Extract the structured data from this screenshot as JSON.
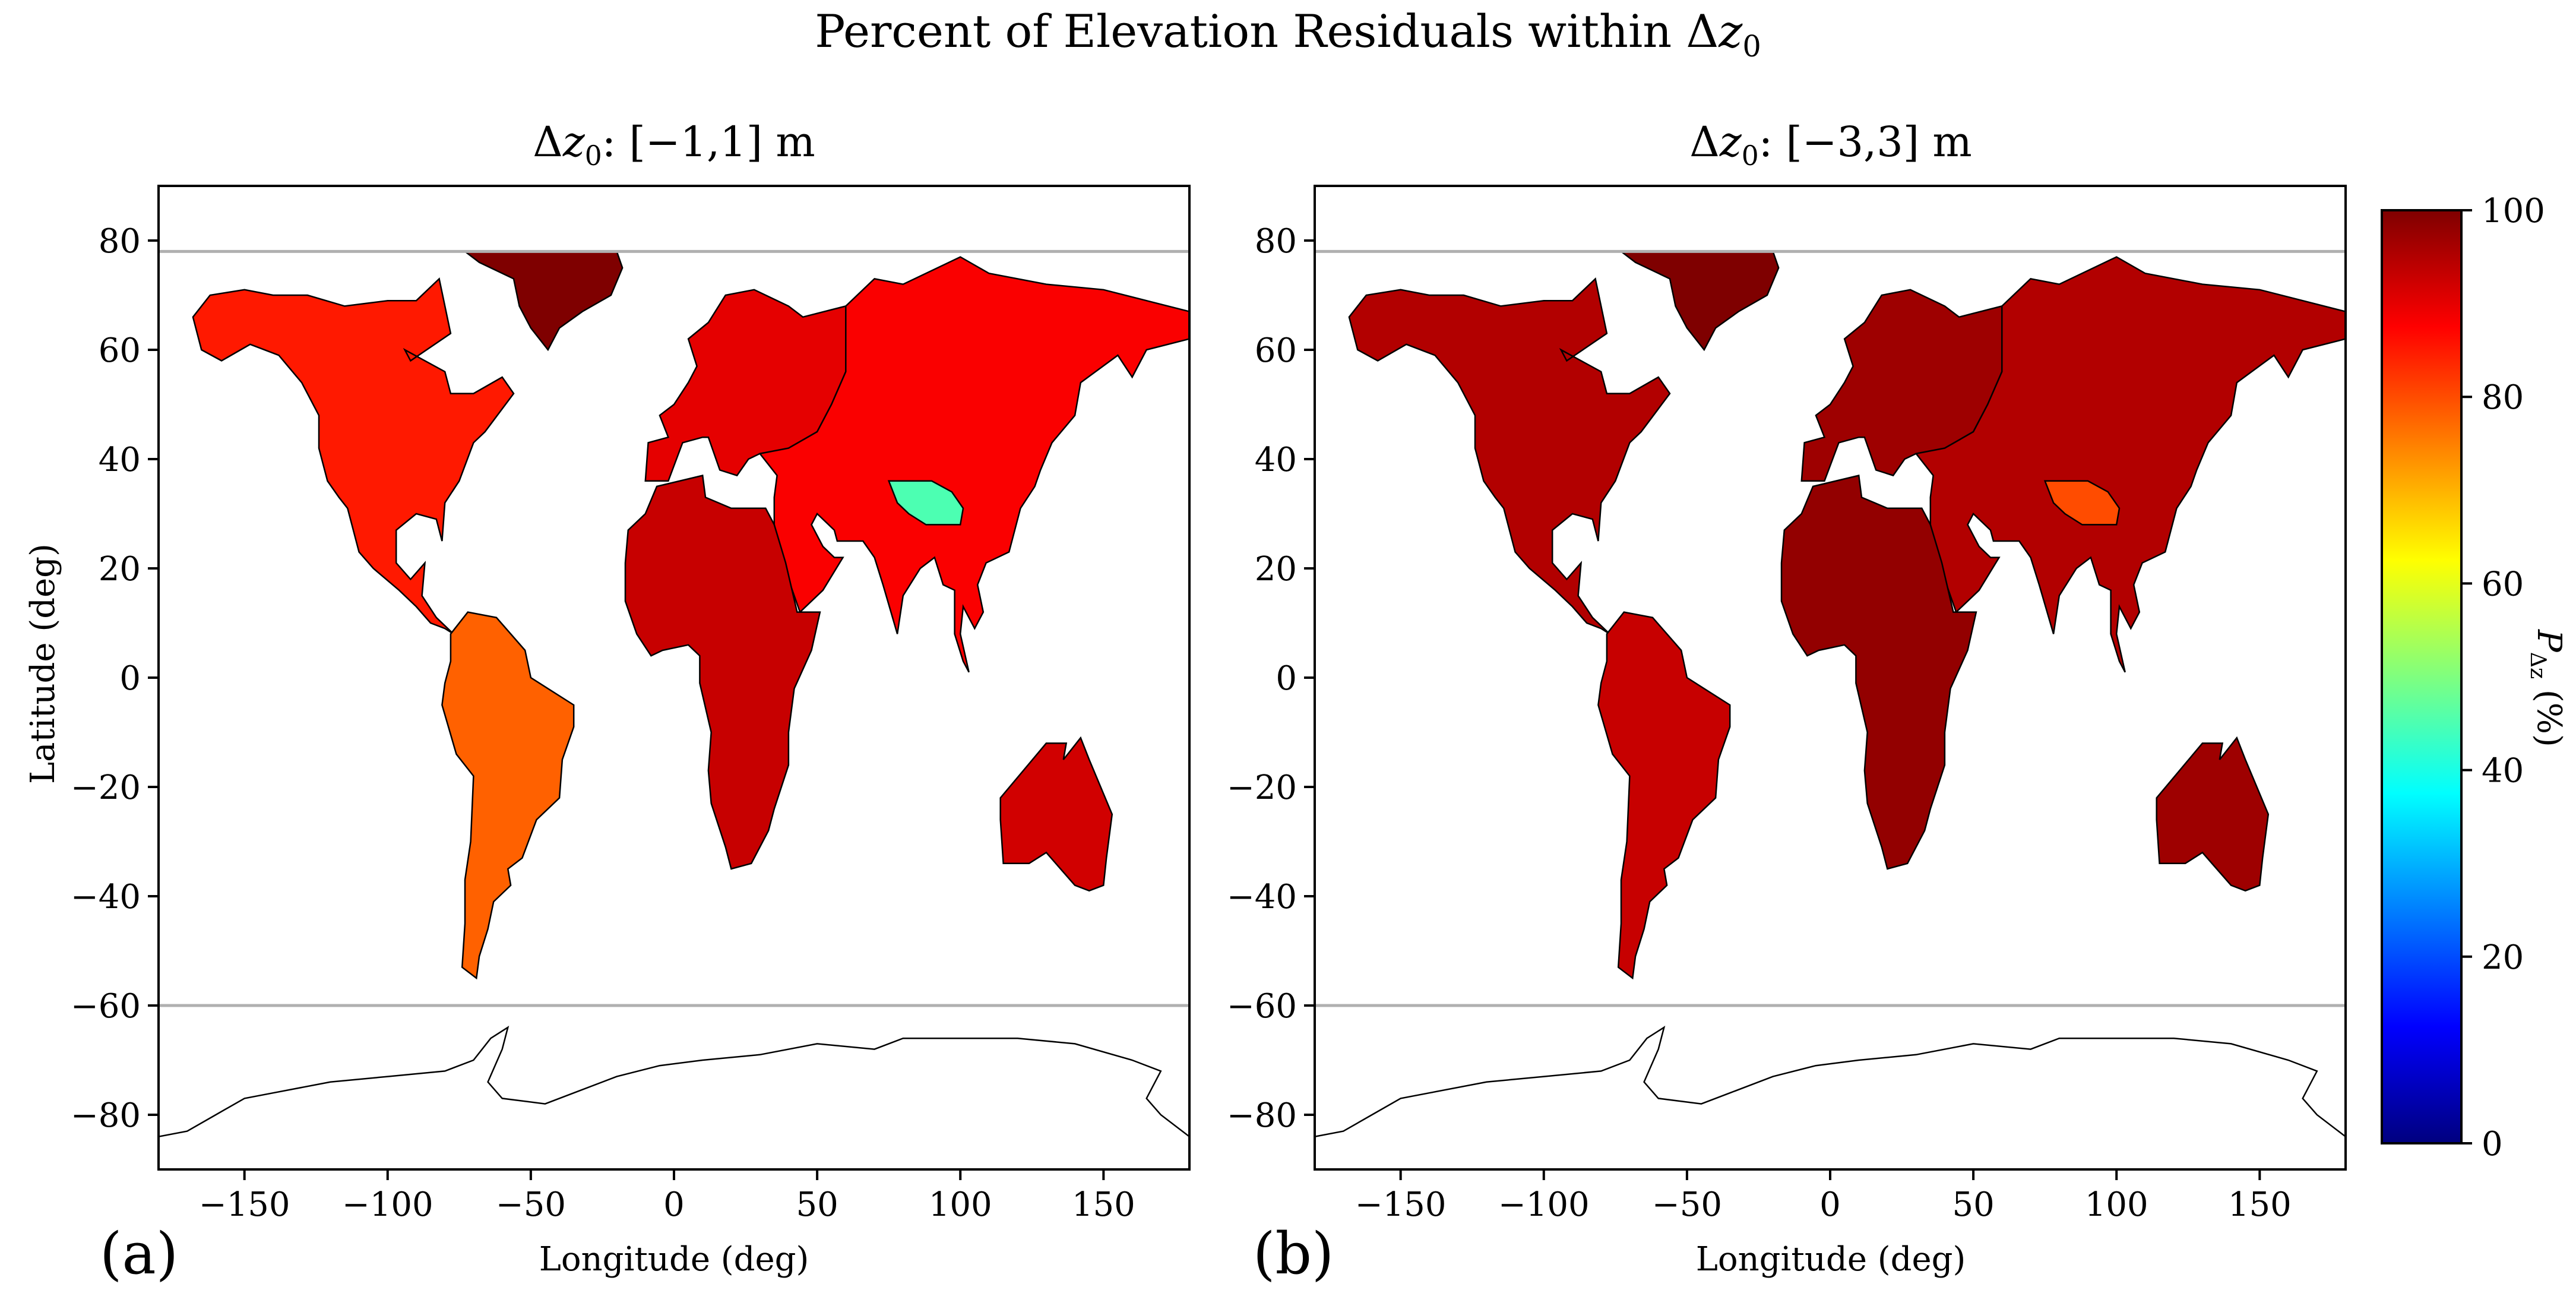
{
  "figure": {
    "title_prefix": "Percent of Elevation Residuals within Δ",
    "title_var": "z",
    "title_sub": "0"
  },
  "chart_data": [
    {
      "type": "heatmap",
      "panel": "(a)",
      "title_prefix": "Δ",
      "title_var": "z",
      "title_sub": "0",
      "title_suffix": ": [−1,1] m",
      "xlabel": "Longitude (deg)",
      "ylabel": "Latitude (deg)",
      "xlim": [
        -180,
        180
      ],
      "ylim": [
        -90,
        90
      ],
      "xticks": [
        -150,
        -100,
        -50,
        0,
        50,
        100,
        150
      ],
      "yticks": [
        80,
        60,
        40,
        20,
        0,
        -20,
        -40,
        -60,
        -80
      ],
      "reference_lines_lat": [
        78,
        -60
      ],
      "regions": [
        {
          "name": "North America",
          "value": 85
        },
        {
          "name": "Greenland",
          "value": 100
        },
        {
          "name": "South America",
          "value": 78
        },
        {
          "name": "Europe",
          "value": 90
        },
        {
          "name": "Asia",
          "value": 88
        },
        {
          "name": "Tibetan Plateau",
          "value": 45
        },
        {
          "name": "Africa",
          "value": 93
        },
        {
          "name": "Australia",
          "value": 92
        },
        {
          "name": "Antarctica",
          "value": null
        }
      ]
    },
    {
      "type": "heatmap",
      "panel": "(b)",
      "title_prefix": "Δ",
      "title_var": "z",
      "title_sub": "0",
      "title_suffix": ": [−3,3] m",
      "xlabel": "Longitude (deg)",
      "ylabel": "",
      "xlim": [
        -180,
        180
      ],
      "ylim": [
        -90,
        90
      ],
      "xticks": [
        -150,
        -100,
        -50,
        0,
        50,
        100,
        150
      ],
      "yticks": [
        80,
        60,
        40,
        20,
        0,
        -20,
        -40,
        -60,
        -80
      ],
      "reference_lines_lat": [
        78,
        -60
      ],
      "regions": [
        {
          "name": "North America",
          "value": 95
        },
        {
          "name": "Greenland",
          "value": 100
        },
        {
          "name": "South America",
          "value": 93
        },
        {
          "name": "Europe",
          "value": 97
        },
        {
          "name": "Asia",
          "value": 95
        },
        {
          "name": "Tibetan Plateau",
          "value": 80
        },
        {
          "name": "Africa",
          "value": 98
        },
        {
          "name": "Australia",
          "value": 97
        },
        {
          "name": "Antarctica",
          "value": null
        }
      ]
    }
  ],
  "colorbar": {
    "label_var": "P",
    "label_sub": "Δz",
    "label_suffix": " (%)",
    "min": 0,
    "max": 100,
    "ticks": [
      100,
      80,
      60,
      40,
      20,
      0
    ],
    "stops": [
      "#00007f",
      "#0000ff",
      "#007fff",
      "#00ffff",
      "#7fff7f",
      "#ffff00",
      "#ff7f00",
      "#ff0000",
      "#7f0000"
    ]
  }
}
